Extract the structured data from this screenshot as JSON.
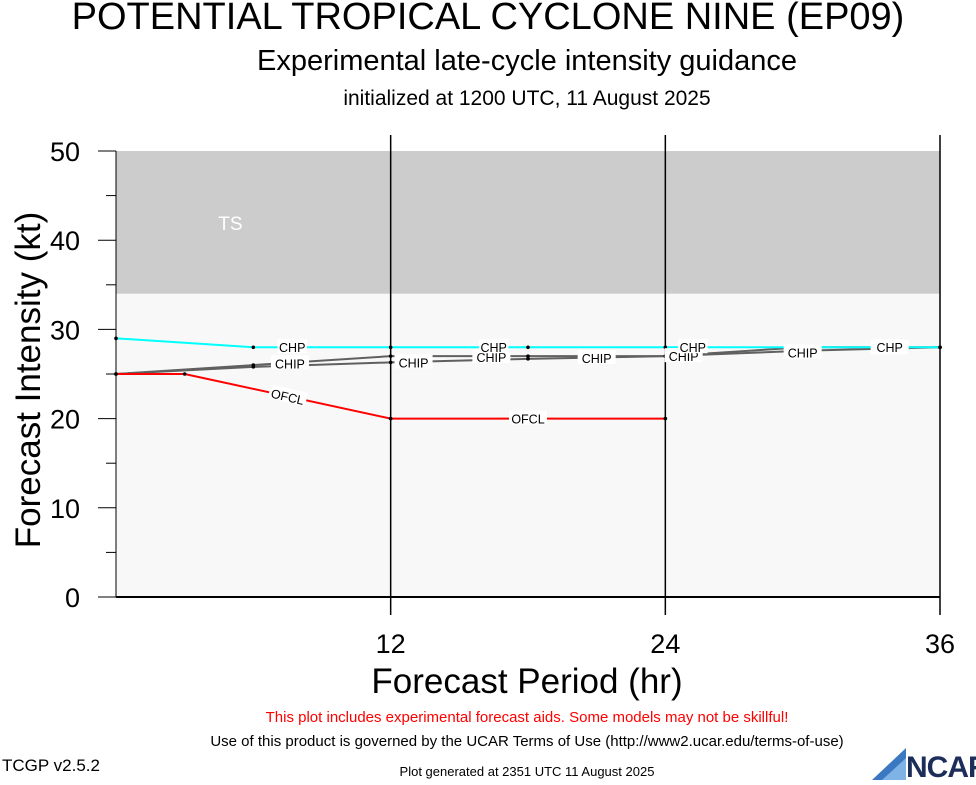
{
  "header": {
    "title": "POTENTIAL TROPICAL CYCLONE NINE (EP09)",
    "subtitle": "Experimental late-cycle intensity guidance",
    "initialized": "initialized at 1200 UTC, 11 August 2025"
  },
  "footer": {
    "disclaimer": "This plot includes experimental forecast aids. Some models may not be skillful!",
    "terms": "Use of this product is governed by the UCAR Terms of Use (http://www2.ucar.edu/terms-of-use)",
    "version": "TCGP v2.5.2",
    "generated": "Plot generated at 2351 UTC   11 August 2025",
    "logo_text": "NCAR"
  },
  "chart_data": {
    "type": "line",
    "xlabel": "Forecast Period (hr)",
    "ylabel": "Forecast Intensity (kt)",
    "xlim": [
      0,
      36
    ],
    "ylim": [
      0,
      50
    ],
    "x_ticks": [
      12,
      24,
      36
    ],
    "y_ticks": [
      0,
      10,
      20,
      30,
      40,
      50
    ],
    "region_label": "TS",
    "region_range_kt": [
      34,
      50
    ],
    "colors": {
      "ts_band": "#cccccc",
      "below_band": "#f8f8f8",
      "OFCL": "#ff0000",
      "CHP": "#00ffff",
      "CHIP": "#606060"
    },
    "series": [
      {
        "name": "OFCL",
        "color": "#ff0000",
        "x": [
          0,
          3,
          12,
          24
        ],
        "y": [
          25,
          25,
          20,
          20
        ],
        "labels": [
          {
            "text": "OFCL",
            "x": 7.5,
            "y": 22.5,
            "rotate": 13
          },
          {
            "text": "OFCL",
            "x": 18,
            "y": 20,
            "rotate": 0
          }
        ]
      },
      {
        "name": "CHP",
        "color": "#00ffff",
        "x": [
          0,
          6,
          12,
          18,
          24,
          30,
          36
        ],
        "y": [
          29,
          28,
          28,
          28,
          28,
          28,
          28
        ],
        "labels": [
          {
            "text": "CHP",
            "x": 7.7,
            "y": 28,
            "rotate": 0
          },
          {
            "text": "CHP",
            "x": 16.5,
            "y": 28,
            "rotate": 0
          },
          {
            "text": "CHP",
            "x": 25.2,
            "y": 28,
            "rotate": 0
          },
          {
            "text": "CHP",
            "x": 33.8,
            "y": 28,
            "rotate": 0
          }
        ]
      },
      {
        "name": "CHIP",
        "color": "#606060",
        "x": [
          0,
          6,
          12,
          18,
          24,
          30,
          36
        ],
        "y": [
          25,
          26,
          27,
          27,
          27,
          28,
          28
        ],
        "labels": [
          {
            "text": "CHIP",
            "x": 7.6,
            "y": 26.2,
            "rotate": 0
          },
          {
            "text": "CHIP",
            "x": 16.4,
            "y": 26.9,
            "rotate": 0
          },
          {
            "text": "CHIP",
            "x": 24.8,
            "y": 27.0,
            "rotate": 0
          },
          {
            "text": "CHIP",
            "x": 33.8,
            "y": 27.9,
            "rotate": 0
          }
        ]
      },
      {
        "name": "CHIP",
        "color": "#606060",
        "x": [
          0,
          6,
          12,
          18,
          24,
          30,
          36
        ],
        "y": [
          25,
          25.8,
          26.3,
          26.7,
          27,
          27.6,
          28
        ],
        "labels": [
          {
            "text": "CHIP",
            "x": 13,
            "y": 26.3,
            "rotate": 0
          },
          {
            "text": "CHIP",
            "x": 21,
            "y": 26.8,
            "rotate": 0
          },
          {
            "text": "CHIP",
            "x": 30,
            "y": 27.4,
            "rotate": 0
          }
        ]
      }
    ]
  }
}
